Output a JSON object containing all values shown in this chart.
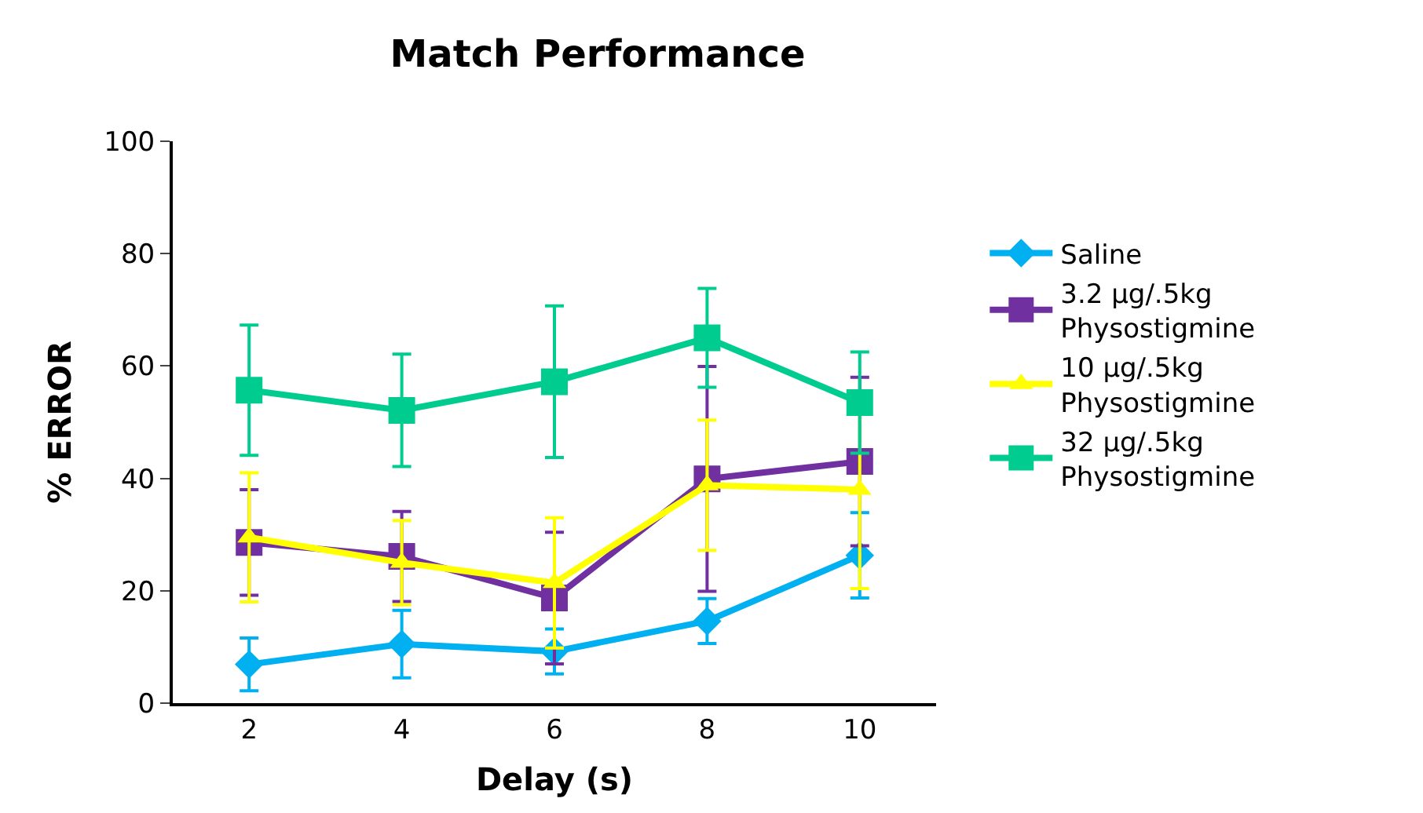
{
  "chart_data": {
    "type": "line",
    "title": "Match Performance",
    "xlabel": "Delay (s)",
    "ylabel": "% ERROR",
    "categories": [
      "2",
      "4",
      "6",
      "8",
      "10"
    ],
    "ylim": [
      0,
      100
    ],
    "yticks": [
      0,
      20,
      40,
      60,
      80,
      100
    ],
    "legend": "right",
    "series": [
      {
        "name": "Saline",
        "color": "#00b0f0",
        "marker": "diamond",
        "values": [
          6.9,
          10.5,
          9.2,
          14.6,
          26.3
        ],
        "errors": [
          4.7,
          6,
          4,
          4,
          7.6
        ]
      },
      {
        "name": "3.2 µg/.5kg Physostigmine",
        "color": "#7030a0",
        "marker": "square",
        "values": [
          28.6,
          26.1,
          18.7,
          39.9,
          43
        ],
        "errors": [
          9.4,
          8,
          11.7,
          20,
          15
        ]
      },
      {
        "name": "10 µg/.5kg Physostigmine",
        "color": "#ffff00",
        "marker": "triangle",
        "values": [
          29.5,
          25,
          21.4,
          38.8,
          38
        ],
        "errors": [
          11.5,
          7.5,
          11.6,
          11.6,
          17.6
        ]
      },
      {
        "name": "32 µg/.5kg Physostigmine",
        "color": "#00cc8f",
        "marker": "square",
        "values": [
          55.7,
          52.1,
          57.2,
          65,
          53.5
        ],
        "errors": [
          11.6,
          10,
          13.5,
          8.8,
          9
        ]
      }
    ]
  }
}
